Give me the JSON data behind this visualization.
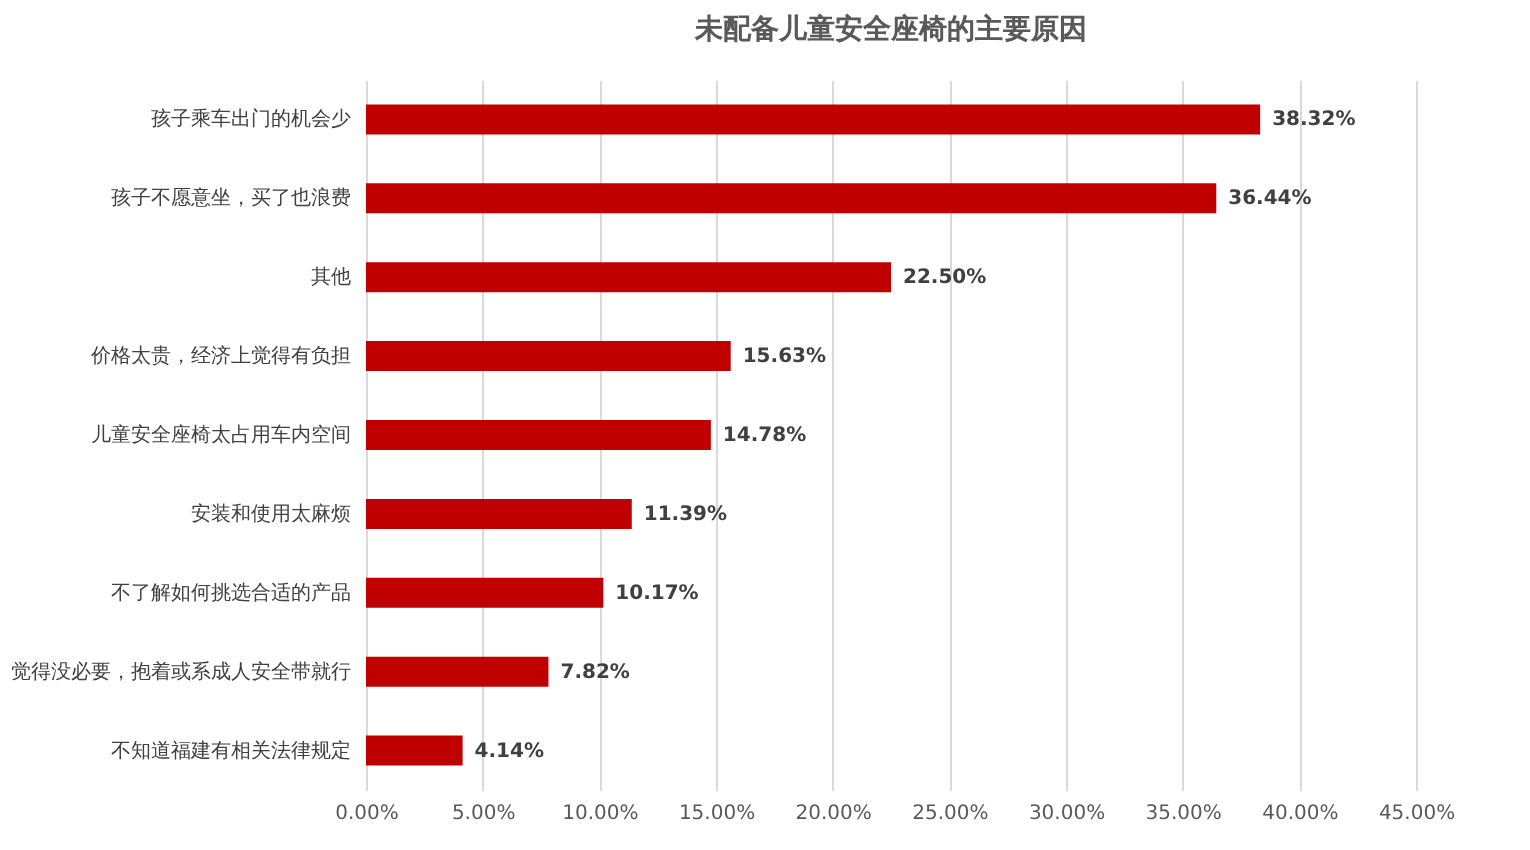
{
  "chart_data": {
    "type": "bar",
    "orientation": "horizontal",
    "title": "未配备儿童安全座椅的主要原因",
    "categories": [
      "孩子乘车出门的机会少",
      "孩子不愿意坐，买了也浪费",
      "其他",
      "价格太贵，经济上觉得有负担",
      "儿童安全座椅太占用车内空间",
      "安装和使用太麻烦",
      "不了解如何挑选合适的产品",
      "觉得没必要，抱着或系成人安全带就行",
      "不知道福建有相关法律规定"
    ],
    "values": [
      38.32,
      36.44,
      22.5,
      15.63,
      14.78,
      11.39,
      10.17,
      7.82,
      4.14
    ],
    "value_labels": [
      "38.32%",
      "36.44%",
      "22.50%",
      "15.63%",
      "14.78%",
      "11.39%",
      "10.17%",
      "7.82%",
      "4.14%"
    ],
    "color": "#c00000",
    "xlim": [
      0,
      45
    ],
    "xticks": [
      {
        "value": 0,
        "label": "0.00%"
      },
      {
        "value": 5,
        "label": "5.00%"
      },
      {
        "value": 10,
        "label": "10.00%"
      },
      {
        "value": 15,
        "label": "15.00%"
      },
      {
        "value": 20,
        "label": "20.00%"
      },
      {
        "value": 25,
        "label": "25.00%"
      },
      {
        "value": 30,
        "label": "30.00%"
      },
      {
        "value": 35,
        "label": "35.00%"
      },
      {
        "value": 40,
        "label": "40.00%"
      },
      {
        "value": 45,
        "label": "45.00%"
      }
    ],
    "grid": "x"
  }
}
